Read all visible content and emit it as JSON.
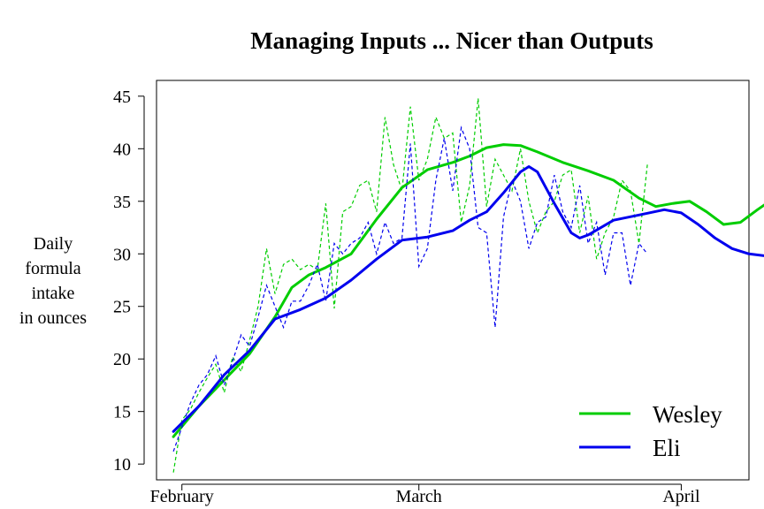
{
  "chart_data": {
    "type": "line",
    "title": "Managing Inputs ... Nicer than Outputs",
    "ylabel_lines": [
      "Daily",
      "formula",
      "intake",
      "in ounces"
    ],
    "xlabel": "",
    "ylim": [
      8.5,
      46.5
    ],
    "yticks": [
      10,
      15,
      20,
      25,
      30,
      35,
      40,
      45
    ],
    "xlim": [
      "2013-01-29",
      "2013-04-09"
    ],
    "xticks": [
      {
        "label": "February",
        "date": "2013-02-01"
      },
      {
        "label": "March",
        "date": "2013-03-01"
      },
      {
        "label": "April",
        "date": "2013-04-01"
      }
    ],
    "grid": false,
    "legend_position": "bottom-right",
    "series": [
      {
        "name": "Wesley",
        "color": "#00CD00",
        "daily_start": "2013-01-31",
        "daily": [
          9.2,
          14.2,
          15.2,
          16.8,
          18.2,
          19.5,
          16.8,
          20.2,
          18.8,
          21.8,
          25.0,
          30.5,
          26.2,
          29.0,
          29.5,
          28.5,
          29.0,
          28.5,
          34.8,
          24.8,
          34.0,
          34.5,
          36.5,
          37.0,
          34.0,
          43.0,
          38.5,
          36.0,
          44.0,
          37.0,
          39.0,
          43.0,
          41.0,
          41.5,
          33.0,
          36.5,
          44.8,
          34.5,
          39.0,
          37.5,
          36.0,
          40.0,
          35.0,
          32.0,
          34.0,
          35.0,
          37.5,
          38.0,
          32.0,
          35.5,
          29.5,
          32.0,
          33.5,
          37.0,
          36.0,
          31.0,
          38.5
        ],
        "smooth": [
          {
            "date": "2013-01-31",
            "value": 12.6
          },
          {
            "date": "2013-02-03",
            "value": 15.5
          },
          {
            "date": "2013-02-06",
            "value": 18.0
          },
          {
            "date": "2013-02-09",
            "value": 20.5
          },
          {
            "date": "2013-02-12",
            "value": 24.0
          },
          {
            "date": "2013-02-14",
            "value": 26.8
          },
          {
            "date": "2013-02-16",
            "value": 28.0
          },
          {
            "date": "2013-02-18",
            "value": 28.7
          },
          {
            "date": "2013-02-21",
            "value": 30.0
          },
          {
            "date": "2013-02-24",
            "value": 33.3
          },
          {
            "date": "2013-02-27",
            "value": 36.3
          },
          {
            "date": "2013-03-02",
            "value": 38.0
          },
          {
            "date": "2013-03-05",
            "value": 38.7
          },
          {
            "date": "2013-03-07",
            "value": 39.3
          },
          {
            "date": "2013-03-09",
            "value": 40.1
          },
          {
            "date": "2013-03-11",
            "value": 40.4
          },
          {
            "date": "2013-03-13",
            "value": 40.3
          },
          {
            "date": "2013-03-15",
            "value": 39.7
          },
          {
            "date": "2013-03-18",
            "value": 38.7
          },
          {
            "date": "2013-03-21",
            "value": 37.9
          },
          {
            "date": "2013-03-24",
            "value": 37.0
          },
          {
            "date": "2013-03-27",
            "value": 35.3
          },
          {
            "date": "2013-03-29",
            "value": 34.5
          },
          {
            "date": "2013-03-31",
            "value": 34.8
          },
          {
            "date": "2013-04-02",
            "value": 35.0
          },
          {
            "date": "2013-04-04",
            "value": 34.0
          },
          {
            "date": "2013-04-06",
            "value": 32.8
          },
          {
            "date": "2013-04-08",
            "value": 33.0
          },
          {
            "date": "2013-04-10",
            "value": 34.2
          },
          {
            "date": "2013-04-12",
            "value": 35.3
          }
        ]
      },
      {
        "name": "Eli",
        "color": "#0000EE",
        "daily_start": "2013-01-31",
        "daily": [
          11.2,
          13.5,
          15.8,
          17.5,
          18.5,
          20.3,
          17.5,
          19.8,
          22.3,
          21.2,
          24.0,
          27.0,
          25.0,
          23.0,
          25.5,
          25.5,
          27.0,
          29.0,
          25.5,
          31.0,
          30.0,
          31.0,
          31.5,
          33.0,
          30.0,
          33.0,
          31.0,
          31.5,
          40.5,
          28.8,
          30.5,
          37.0,
          41.0,
          36.0,
          42.0,
          40.0,
          32.5,
          32.0,
          23.0,
          33.5,
          37.0,
          35.0,
          30.5,
          33.0,
          33.5,
          37.5,
          34.0,
          32.5,
          36.5,
          31.0,
          33.0,
          28.0,
          32.0,
          32.0,
          27.0,
          31.0,
          30.0
        ],
        "smooth": [
          {
            "date": "2013-01-31",
            "value": 13.1
          },
          {
            "date": "2013-02-03",
            "value": 15.5
          },
          {
            "date": "2013-02-06",
            "value": 18.5
          },
          {
            "date": "2013-02-09",
            "value": 20.8
          },
          {
            "date": "2013-02-12",
            "value": 23.8
          },
          {
            "date": "2013-02-15",
            "value": 24.7
          },
          {
            "date": "2013-02-18",
            "value": 25.8
          },
          {
            "date": "2013-02-21",
            "value": 27.5
          },
          {
            "date": "2013-02-24",
            "value": 29.5
          },
          {
            "date": "2013-02-27",
            "value": 31.3
          },
          {
            "date": "2013-03-02",
            "value": 31.6
          },
          {
            "date": "2013-03-05",
            "value": 32.2
          },
          {
            "date": "2013-03-07",
            "value": 33.2
          },
          {
            "date": "2013-03-09",
            "value": 34.0
          },
          {
            "date": "2013-03-11",
            "value": 35.8
          },
          {
            "date": "2013-03-13",
            "value": 37.8
          },
          {
            "date": "2013-03-14",
            "value": 38.3
          },
          {
            "date": "2013-03-15",
            "value": 37.8
          },
          {
            "date": "2013-03-17",
            "value": 34.8
          },
          {
            "date": "2013-03-19",
            "value": 32.0
          },
          {
            "date": "2013-03-20",
            "value": 31.5
          },
          {
            "date": "2013-03-21",
            "value": 31.8
          },
          {
            "date": "2013-03-24",
            "value": 33.2
          },
          {
            "date": "2013-03-27",
            "value": 33.7
          },
          {
            "date": "2013-03-30",
            "value": 34.2
          },
          {
            "date": "2013-04-01",
            "value": 33.9
          },
          {
            "date": "2013-04-03",
            "value": 32.8
          },
          {
            "date": "2013-04-05",
            "value": 31.5
          },
          {
            "date": "2013-04-07",
            "value": 30.5
          },
          {
            "date": "2013-04-09",
            "value": 30.0
          },
          {
            "date": "2013-04-11",
            "value": 29.8
          },
          {
            "date": "2013-04-12",
            "value": 29.6
          }
        ]
      }
    ]
  }
}
